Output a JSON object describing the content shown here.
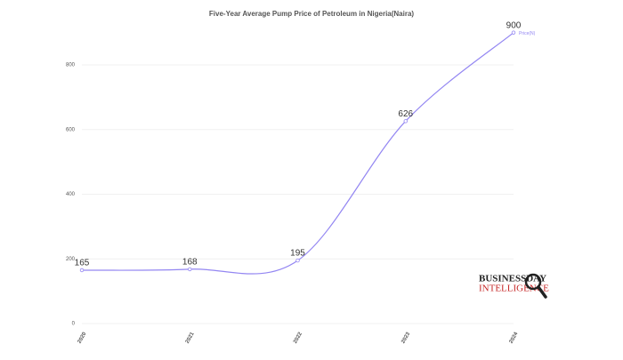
{
  "chart_data": {
    "type": "line",
    "title": "Five-Year Average Pump Price of Petroleum in Nigeria(Naira)",
    "categories": [
      "2020",
      "2021",
      "2022",
      "2023",
      "2024"
    ],
    "series": [
      {
        "name": "Price(N)",
        "color": "#9386f2",
        "values": [
          165,
          168,
          195,
          626,
          900
        ]
      }
    ],
    "ylim": [
      0,
      920
    ],
    "yticks": [
      0,
      200,
      400,
      600,
      800
    ],
    "grid": true,
    "smooth": true
  },
  "watermark": {
    "line1": "BUSINESSDAY",
    "line2": "INTELLIGENCE"
  }
}
